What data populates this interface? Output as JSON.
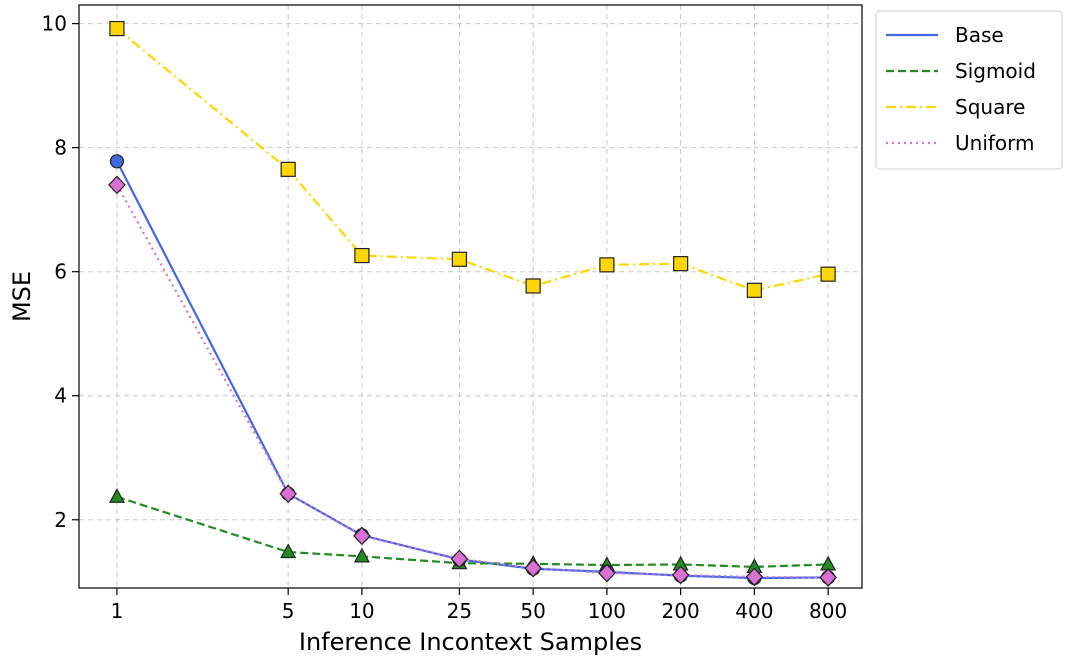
{
  "chart_data": {
    "type": "line",
    "title": "",
    "xlabel": "Inference Incontext Samples",
    "ylabel": "MSE",
    "categories": [
      "1",
      "5",
      "10",
      "25",
      "50",
      "100",
      "200",
      "400",
      "800"
    ],
    "x": [
      1,
      5,
      10,
      25,
      50,
      100,
      200,
      400,
      800
    ],
    "xscale": "log",
    "xlim": [
      0.7,
      1100
    ],
    "ylim": [
      0.9,
      10.3
    ],
    "yticks": [
      2,
      4,
      6,
      8,
      10
    ],
    "ytick_labels": [
      "2",
      "4",
      "6",
      "8",
      "10"
    ],
    "grid": true,
    "legend_position": "outside-top-right",
    "series": [
      {
        "name": "Base",
        "values": [
          7.78,
          2.42,
          1.75,
          1.36,
          1.21,
          1.16,
          1.1,
          1.06,
          1.07
        ],
        "color": "#4169e1",
        "dash": "solid",
        "marker": "circle"
      },
      {
        "name": "Sigmoid",
        "values": [
          2.37,
          1.48,
          1.41,
          1.3,
          1.29,
          1.27,
          1.28,
          1.24,
          1.28
        ],
        "color": "#228b22",
        "dash": "dashed",
        "marker": "triangle"
      },
      {
        "name": "Square",
        "values": [
          9.92,
          7.65,
          6.26,
          6.2,
          5.77,
          6.11,
          6.13,
          5.7,
          5.96
        ],
        "color": "#ffd700",
        "dash": "dashdot",
        "marker": "square"
      },
      {
        "name": "Uniform",
        "values": [
          7.4,
          2.42,
          1.74,
          1.37,
          1.22,
          1.14,
          1.11,
          1.08,
          1.07
        ],
        "color": "#da70d6",
        "dash": "dotted",
        "marker": "diamond"
      }
    ]
  }
}
